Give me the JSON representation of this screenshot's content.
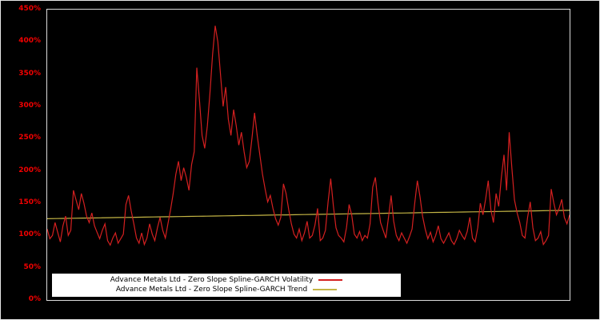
{
  "chart_data": {
    "type": "line",
    "title": "",
    "xlabel": "",
    "ylabel": "",
    "xtick_labels": [],
    "ylim": [
      0,
      450
    ],
    "ytick_values": [
      0,
      50,
      100,
      150,
      200,
      250,
      300,
      350,
      400,
      450
    ],
    "ytick_labels": [
      "0%",
      "50%",
      "100%",
      "150%",
      "200%",
      "250%",
      "300%",
      "350%",
      "400%",
      "450%"
    ],
    "grid": false,
    "legend_position": "bottom-left",
    "axis_tick_color": "#f20000",
    "plot_background": "#000000",
    "series": [
      {
        "name": "Advance Metals Ltd - Zero Slope Spline-GARCH Volatility",
        "color": "#d42020",
        "unit": "%",
        "values": [
          110,
          95,
          100,
          120,
          105,
          90,
          115,
          130,
          100,
          108,
          170,
          155,
          140,
          165,
          150,
          130,
          120,
          135,
          115,
          105,
          95,
          108,
          118,
          92,
          85,
          96,
          104,
          88,
          95,
          102,
          148,
          162,
          138,
          118,
          96,
          88,
          104,
          86,
          96,
          118,
          102,
          92,
          112,
          128,
          108,
          96,
          118,
          140,
          165,
          195,
          215,
          185,
          205,
          190,
          170,
          210,
          230,
          360,
          310,
          255,
          235,
          270,
          320,
          380,
          425,
          400,
          350,
          300,
          330,
          280,
          255,
          295,
          270,
          240,
          260,
          230,
          205,
          215,
          250,
          290,
          255,
          225,
          195,
          172,
          152,
          162,
          142,
          126,
          116,
          128,
          180,
          165,
          140,
          118,
          102,
          96,
          110,
          92,
          104,
          122,
          96,
          100,
          116,
          142,
          92,
          96,
          108,
          152,
          188,
          146,
          112,
          100,
          96,
          90,
          112,
          148,
          132,
          102,
          96,
          106,
          92,
          100,
          96,
          118,
          175,
          190,
          150,
          120,
          108,
          96,
          128,
          162,
          122,
          100,
          92,
          104,
          96,
          88,
          98,
          110,
          150,
          185,
          160,
          130,
          110,
          95,
          105,
          90,
          100,
          115,
          95,
          88,
          96,
          104,
          92,
          86,
          95,
          108,
          100,
          94,
          106,
          128,
          96,
          90,
          112,
          150,
          132,
          156,
          185,
          140,
          120,
          165,
          145,
          190,
          225,
          170,
          260,
          205,
          155,
          135,
          120,
          100,
          96,
          128,
          152,
          112,
          92,
          96,
          106,
          86,
          92,
          100,
          172,
          150,
          132,
          142,
          156,
          128,
          118,
          132
        ]
      },
      {
        "name": "Advance Metals Ltd - Zero Slope Spline-GARCH Trend",
        "color": "#c4b545",
        "unit": "%",
        "shape": "linear",
        "start": 126,
        "end": 139
      }
    ]
  }
}
